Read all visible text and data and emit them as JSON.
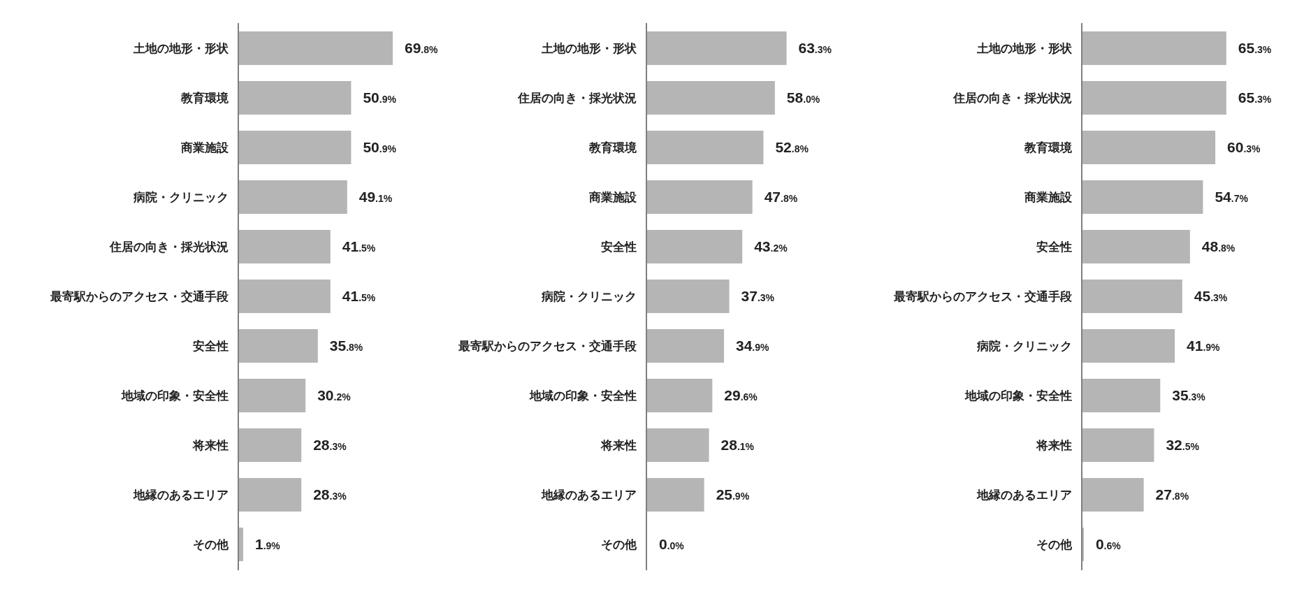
{
  "chart_data": [
    {
      "type": "bar",
      "orientation": "horizontal",
      "color": "#b5b5b5",
      "categories": [
        "土地の地形・形状",
        "教育環境",
        "商業施設",
        "病院・クリニック",
        "住居の向き・採光状況",
        "最寄駅からのアクセス・交通手段",
        "安全性",
        "地域の印象・安全性",
        "将来性",
        "地縁のあるエリア",
        "その他"
      ],
      "values": [
        69.8,
        50.9,
        50.9,
        49.1,
        41.5,
        41.5,
        35.8,
        30.2,
        28.3,
        28.3,
        1.9
      ],
      "value_labels": [
        "69.8%",
        "50.9%",
        "50.9%",
        "49.1%",
        "41.5%",
        "41.5%",
        "35.8%",
        "30.2%",
        "28.3%",
        "28.3%",
        "1.9%"
      ]
    },
    {
      "type": "bar",
      "orientation": "horizontal",
      "color": "#b5b5b5",
      "categories": [
        "土地の地形・形状",
        "住居の向き・採光状況",
        "教育環境",
        "商業施設",
        "安全性",
        "病院・クリニック",
        "最寄駅からのアクセス・交通手段",
        "地域の印象・安全性",
        "将来性",
        "地縁のあるエリア",
        "その他"
      ],
      "values": [
        63.3,
        58.0,
        52.8,
        47.8,
        43.2,
        37.3,
        34.9,
        29.6,
        28.1,
        25.9,
        0.0
      ],
      "value_labels": [
        "63.3%",
        "58.0%",
        "52.8%",
        "47.8%",
        "43.2%",
        "37.3%",
        "34.9%",
        "29.6%",
        "28.1%",
        "25.9%",
        "0.0%"
      ]
    },
    {
      "type": "bar",
      "orientation": "horizontal",
      "color": "#b5b5b5",
      "categories": [
        "土地の地形・形状",
        "住居の向き・採光状況",
        "教育環境",
        "商業施設",
        "安全性",
        "最寄駅からのアクセス・交通手段",
        "病院・クリニック",
        "地域の印象・安全性",
        "将来性",
        "地縁のあるエリア",
        "その他"
      ],
      "values": [
        65.3,
        65.3,
        60.3,
        54.7,
        48.8,
        45.3,
        41.9,
        35.3,
        32.5,
        27.8,
        0.6
      ],
      "value_labels": [
        "65.3%",
        "65.3%",
        "60.3%",
        "54.7%",
        "48.8%",
        "45.3%",
        "41.9%",
        "35.3%",
        "32.5%",
        "27.8%",
        "0.6%"
      ]
    }
  ]
}
